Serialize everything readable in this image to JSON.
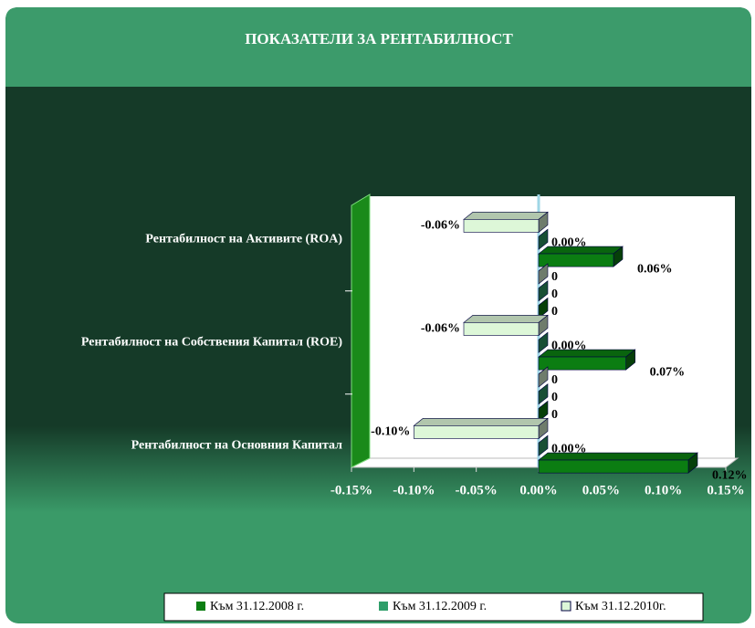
{
  "chart_data": {
    "type": "bar",
    "orientation": "horizontal",
    "title": "ПОКАЗАТЕЛИ ЗА РЕНТАБИЛНОСТ",
    "categories": [
      "Рентабилност на Активите (ROA)",
      null,
      "Рентабилност на Собствения Капитал (ROE)",
      null,
      "Рентабилност на Основния Капитал"
    ],
    "series": [
      {
        "name": "Към 31.12.2008 г.",
        "color": "#0b7d12",
        "values": [
          0.06,
          0,
          0.07,
          0,
          0.12
        ],
        "value_labels": [
          "0.06%",
          "0",
          "0.07%",
          "0",
          "0.12%"
        ]
      },
      {
        "name": "Към 31.12.2009 г.",
        "color": "#2f9e6a",
        "values": [
          0,
          0,
          0,
          0,
          0
        ],
        "value_labels": [
          "0.00%",
          "0",
          "0.00%",
          "0",
          "0.00%"
        ]
      },
      {
        "name": "Към 31.12.2010г.",
        "color": "#ddf7d8",
        "values": [
          -0.06,
          0,
          -0.06,
          0,
          -0.1
        ],
        "value_labels": [
          "-0.06%",
          "0",
          "-0.06%",
          "0",
          "-0.10%"
        ]
      }
    ],
    "xlim": [
      -0.15,
      0.15
    ],
    "xticks": [
      {
        "value": -0.15,
        "label": "-0.15%"
      },
      {
        "value": -0.1,
        "label": "-0.10%"
      },
      {
        "value": -0.05,
        "label": "-0.05%"
      },
      {
        "value": 0,
        "label": "0.00%"
      },
      {
        "value": 0.05,
        "label": "0.05%"
      },
      {
        "value": 0.1,
        "label": "0.10%"
      },
      {
        "value": 0.15,
        "label": "0.15%"
      }
    ],
    "legend": "bottom"
  }
}
